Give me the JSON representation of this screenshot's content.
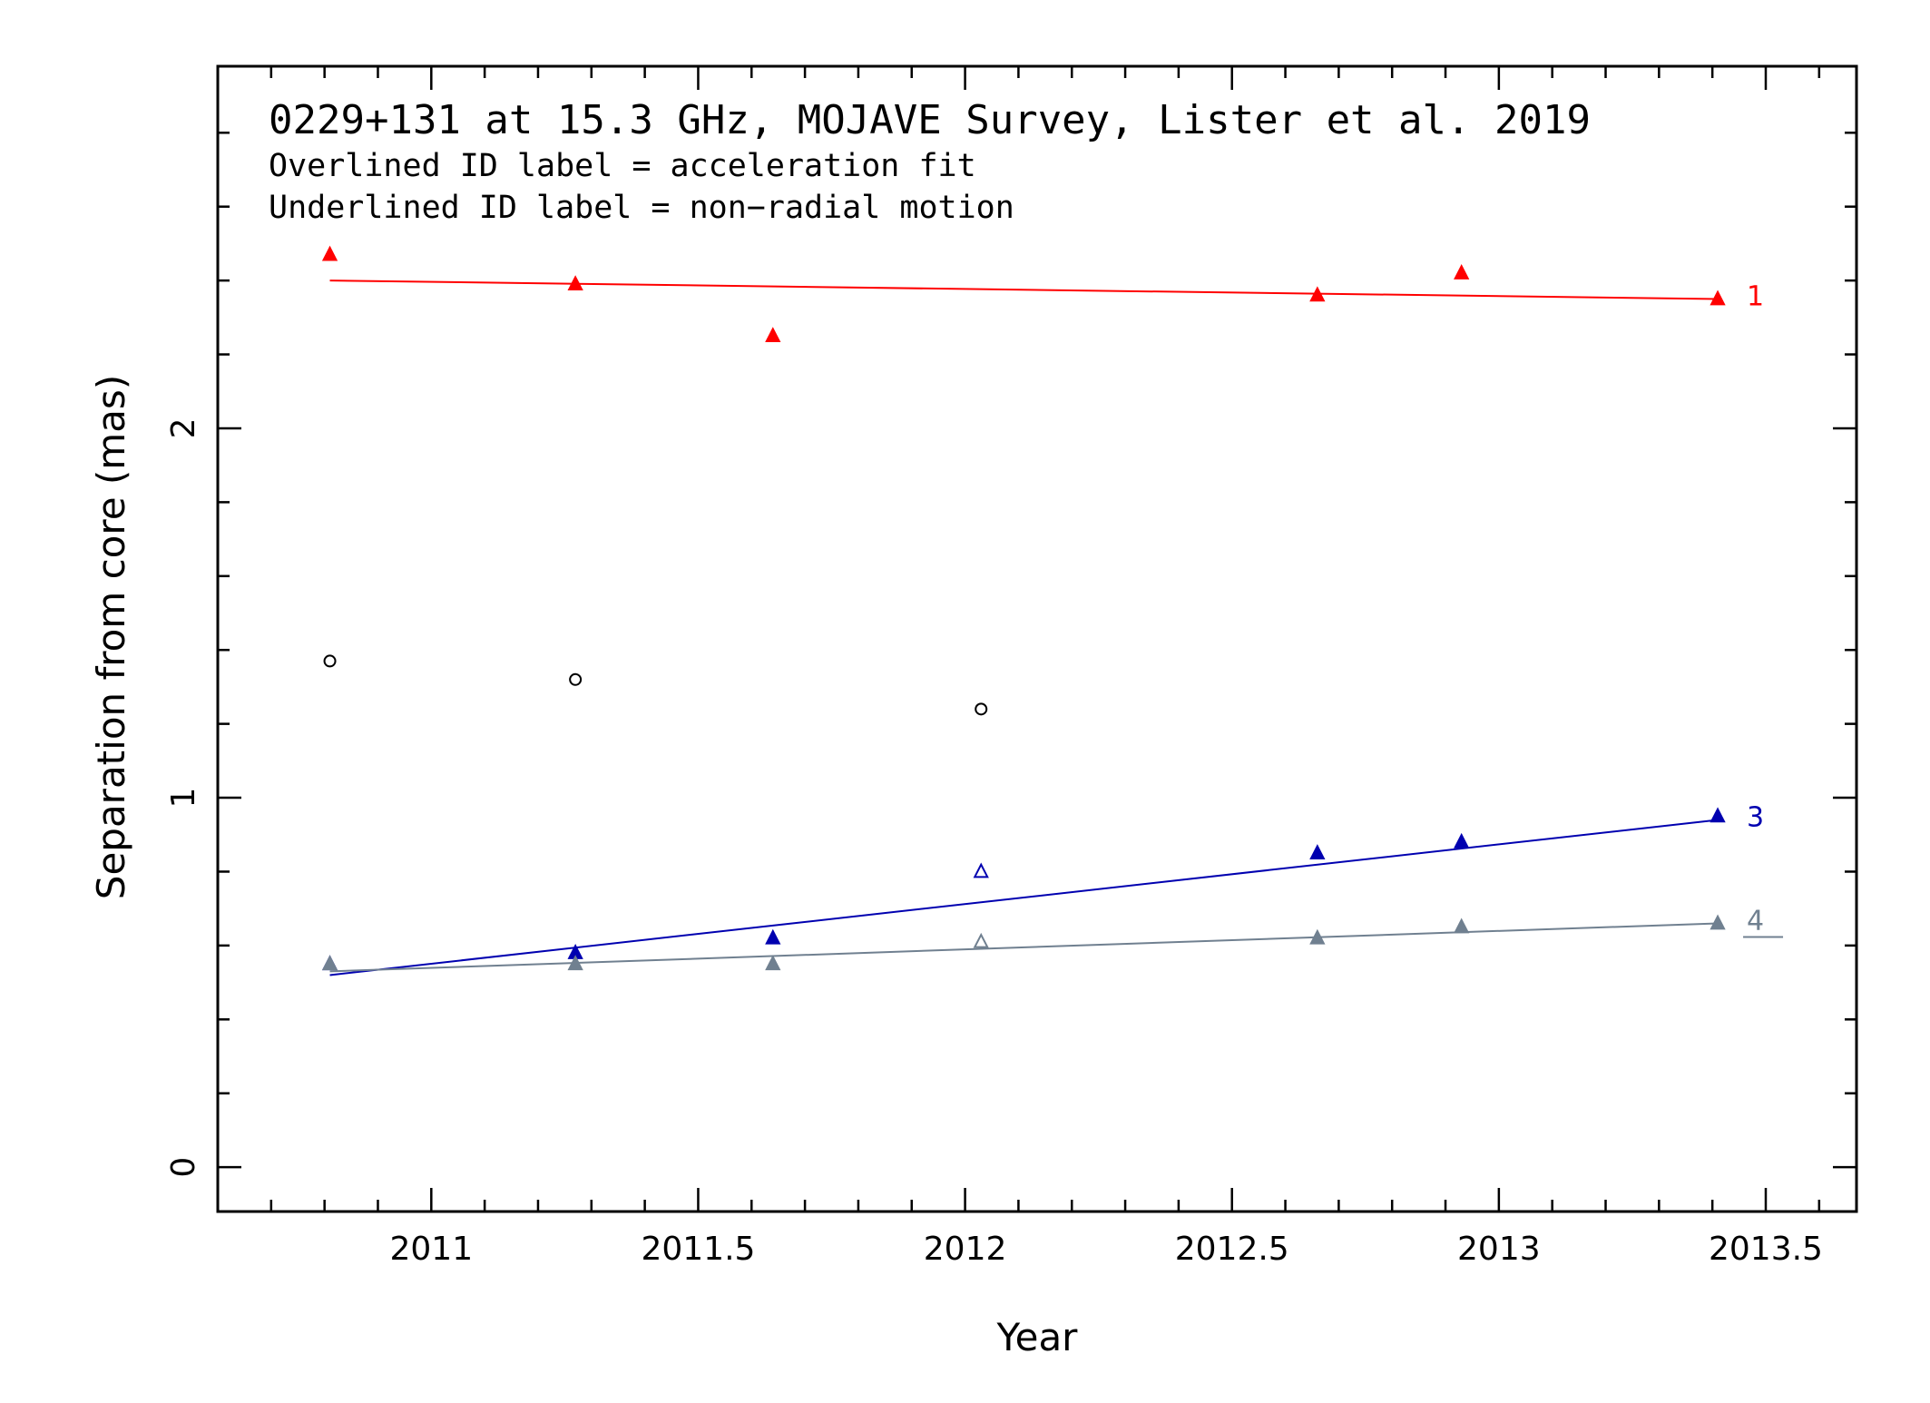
{
  "chart_data": {
    "type": "scatter",
    "title": "0229+131 at 15.3 GHz, MOJAVE Survey, Lister et al. 2019",
    "notes": [
      "Overlined ID label = acceleration fit",
      "Underlined ID label = non−radial motion"
    ],
    "xlabel": "Year",
    "ylabel": "Separation from core (mas)",
    "xlim": [
      2010.6,
      2013.67
    ],
    "ylim": [
      -0.12,
      2.98
    ],
    "xticks": [
      2011,
      2011.5,
      2012,
      2012.5,
      2013,
      2013.5
    ],
    "xtick_labels": [
      "2011",
      "2011.5",
      "2012",
      "2012.5",
      "2013",
      "2013.5"
    ],
    "yticks": [
      0,
      1,
      2
    ],
    "ytick_labels": [
      "0",
      "1",
      "2"
    ],
    "series": [
      {
        "name": "1",
        "color": "#ff0000",
        "marker": "triangle-filled",
        "points": [
          {
            "x": 2010.81,
            "y": 2.47
          },
          {
            "x": 2011.27,
            "y": 2.39
          },
          {
            "x": 2011.64,
            "y": 2.25
          },
          {
            "x": 2012.66,
            "y": 2.36
          },
          {
            "x": 2012.93,
            "y": 2.42
          },
          {
            "x": 2013.41,
            "y": 2.35
          }
        ],
        "fit": {
          "x": [
            2010.81,
            2013.41
          ],
          "y": [
            2.4,
            2.35
          ]
        },
        "label_style": "plain"
      },
      {
        "name": "3",
        "color": "#0000b0",
        "marker": "triangle-filled",
        "points": [
          {
            "x": 2010.81,
            "y": 0.55
          },
          {
            "x": 2011.27,
            "y": 0.58
          },
          {
            "x": 2011.64,
            "y": 0.62
          },
          {
            "x": 2012.03,
            "y": 0.8,
            "open": true
          },
          {
            "x": 2012.66,
            "y": 0.85
          },
          {
            "x": 2012.93,
            "y": 0.88
          },
          {
            "x": 2013.41,
            "y": 0.95
          }
        ],
        "fit": {
          "x": [
            2010.81,
            2013.41
          ],
          "y": [
            0.52,
            0.94
          ]
        },
        "label_style": "plain"
      },
      {
        "name": "4",
        "color": "#708090",
        "marker": "triangle-filled",
        "points": [
          {
            "x": 2010.81,
            "y": 0.55
          },
          {
            "x": 2011.27,
            "y": 0.55
          },
          {
            "x": 2011.64,
            "y": 0.55
          },
          {
            "x": 2012.03,
            "y": 0.61,
            "open": true
          },
          {
            "x": 2012.66,
            "y": 0.62
          },
          {
            "x": 2012.93,
            "y": 0.65
          },
          {
            "x": 2013.41,
            "y": 0.66
          }
        ],
        "fit": {
          "x": [
            2010.81,
            2013.41
          ],
          "y": [
            0.53,
            0.66
          ]
        },
        "label_style": "underlined"
      },
      {
        "color": "#000000",
        "marker": "circle-open",
        "points": [
          {
            "x": 2010.81,
            "y": 1.37
          },
          {
            "x": 2011.27,
            "y": 1.32
          },
          {
            "x": 2012.03,
            "y": 1.24
          }
        ]
      }
    ]
  }
}
